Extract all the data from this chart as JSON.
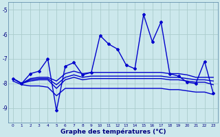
{
  "hours": [
    0,
    1,
    2,
    3,
    4,
    5,
    6,
    7,
    8,
    9,
    10,
    11,
    12,
    13,
    14,
    15,
    16,
    17,
    18,
    19,
    20,
    21,
    22,
    23
  ],
  "line_main": [
    -7.8,
    -8.0,
    -7.6,
    -7.5,
    -7.0,
    -9.1,
    -7.3,
    -7.15,
    -7.65,
    -7.55,
    -6.05,
    -6.4,
    -6.6,
    -7.25,
    -7.4,
    -5.2,
    -6.3,
    -5.5,
    -7.6,
    -7.7,
    -7.95,
    -8.0,
    -7.1,
    -8.4
  ],
  "line_upper": [
    -7.8,
    -8.0,
    -7.8,
    -7.75,
    -7.75,
    -7.9,
    -7.6,
    -7.5,
    -7.6,
    -7.55,
    -7.55,
    -7.55,
    -7.55,
    -7.55,
    -7.55,
    -7.55,
    -7.55,
    -7.55,
    -7.6,
    -7.6,
    -7.65,
    -7.75,
    -7.75,
    -7.75
  ],
  "line_mid1": [
    -7.8,
    -8.0,
    -7.85,
    -7.8,
    -7.8,
    -8.05,
    -7.75,
    -7.65,
    -7.75,
    -7.7,
    -7.7,
    -7.7,
    -7.7,
    -7.7,
    -7.7,
    -7.7,
    -7.7,
    -7.7,
    -7.75,
    -7.75,
    -7.8,
    -7.85,
    -7.85,
    -7.9
  ],
  "line_mid2": [
    -7.8,
    -8.0,
    -7.9,
    -7.85,
    -7.85,
    -8.2,
    -7.85,
    -7.75,
    -7.85,
    -7.8,
    -7.8,
    -7.8,
    -7.8,
    -7.8,
    -7.8,
    -7.8,
    -7.8,
    -7.8,
    -7.85,
    -7.85,
    -7.9,
    -7.95,
    -7.95,
    -8.05
  ],
  "line_lower": [
    -7.9,
    -8.05,
    -8.1,
    -8.1,
    -8.15,
    -8.5,
    -8.2,
    -8.2,
    -8.2,
    -8.2,
    -8.2,
    -8.2,
    -8.2,
    -8.2,
    -8.2,
    -8.2,
    -8.2,
    -8.2,
    -8.25,
    -8.25,
    -8.3,
    -8.35,
    -8.35,
    -8.45
  ],
  "bg_color": "#cce8ec",
  "grid_color": "#aacccc",
  "line_color": "#0000cc",
  "xlabel": "Graphe des températures (°C)",
  "ylim": [
    -9.6,
    -4.7
  ],
  "yticks": [
    -9,
    -8,
    -7,
    -6,
    -5
  ]
}
